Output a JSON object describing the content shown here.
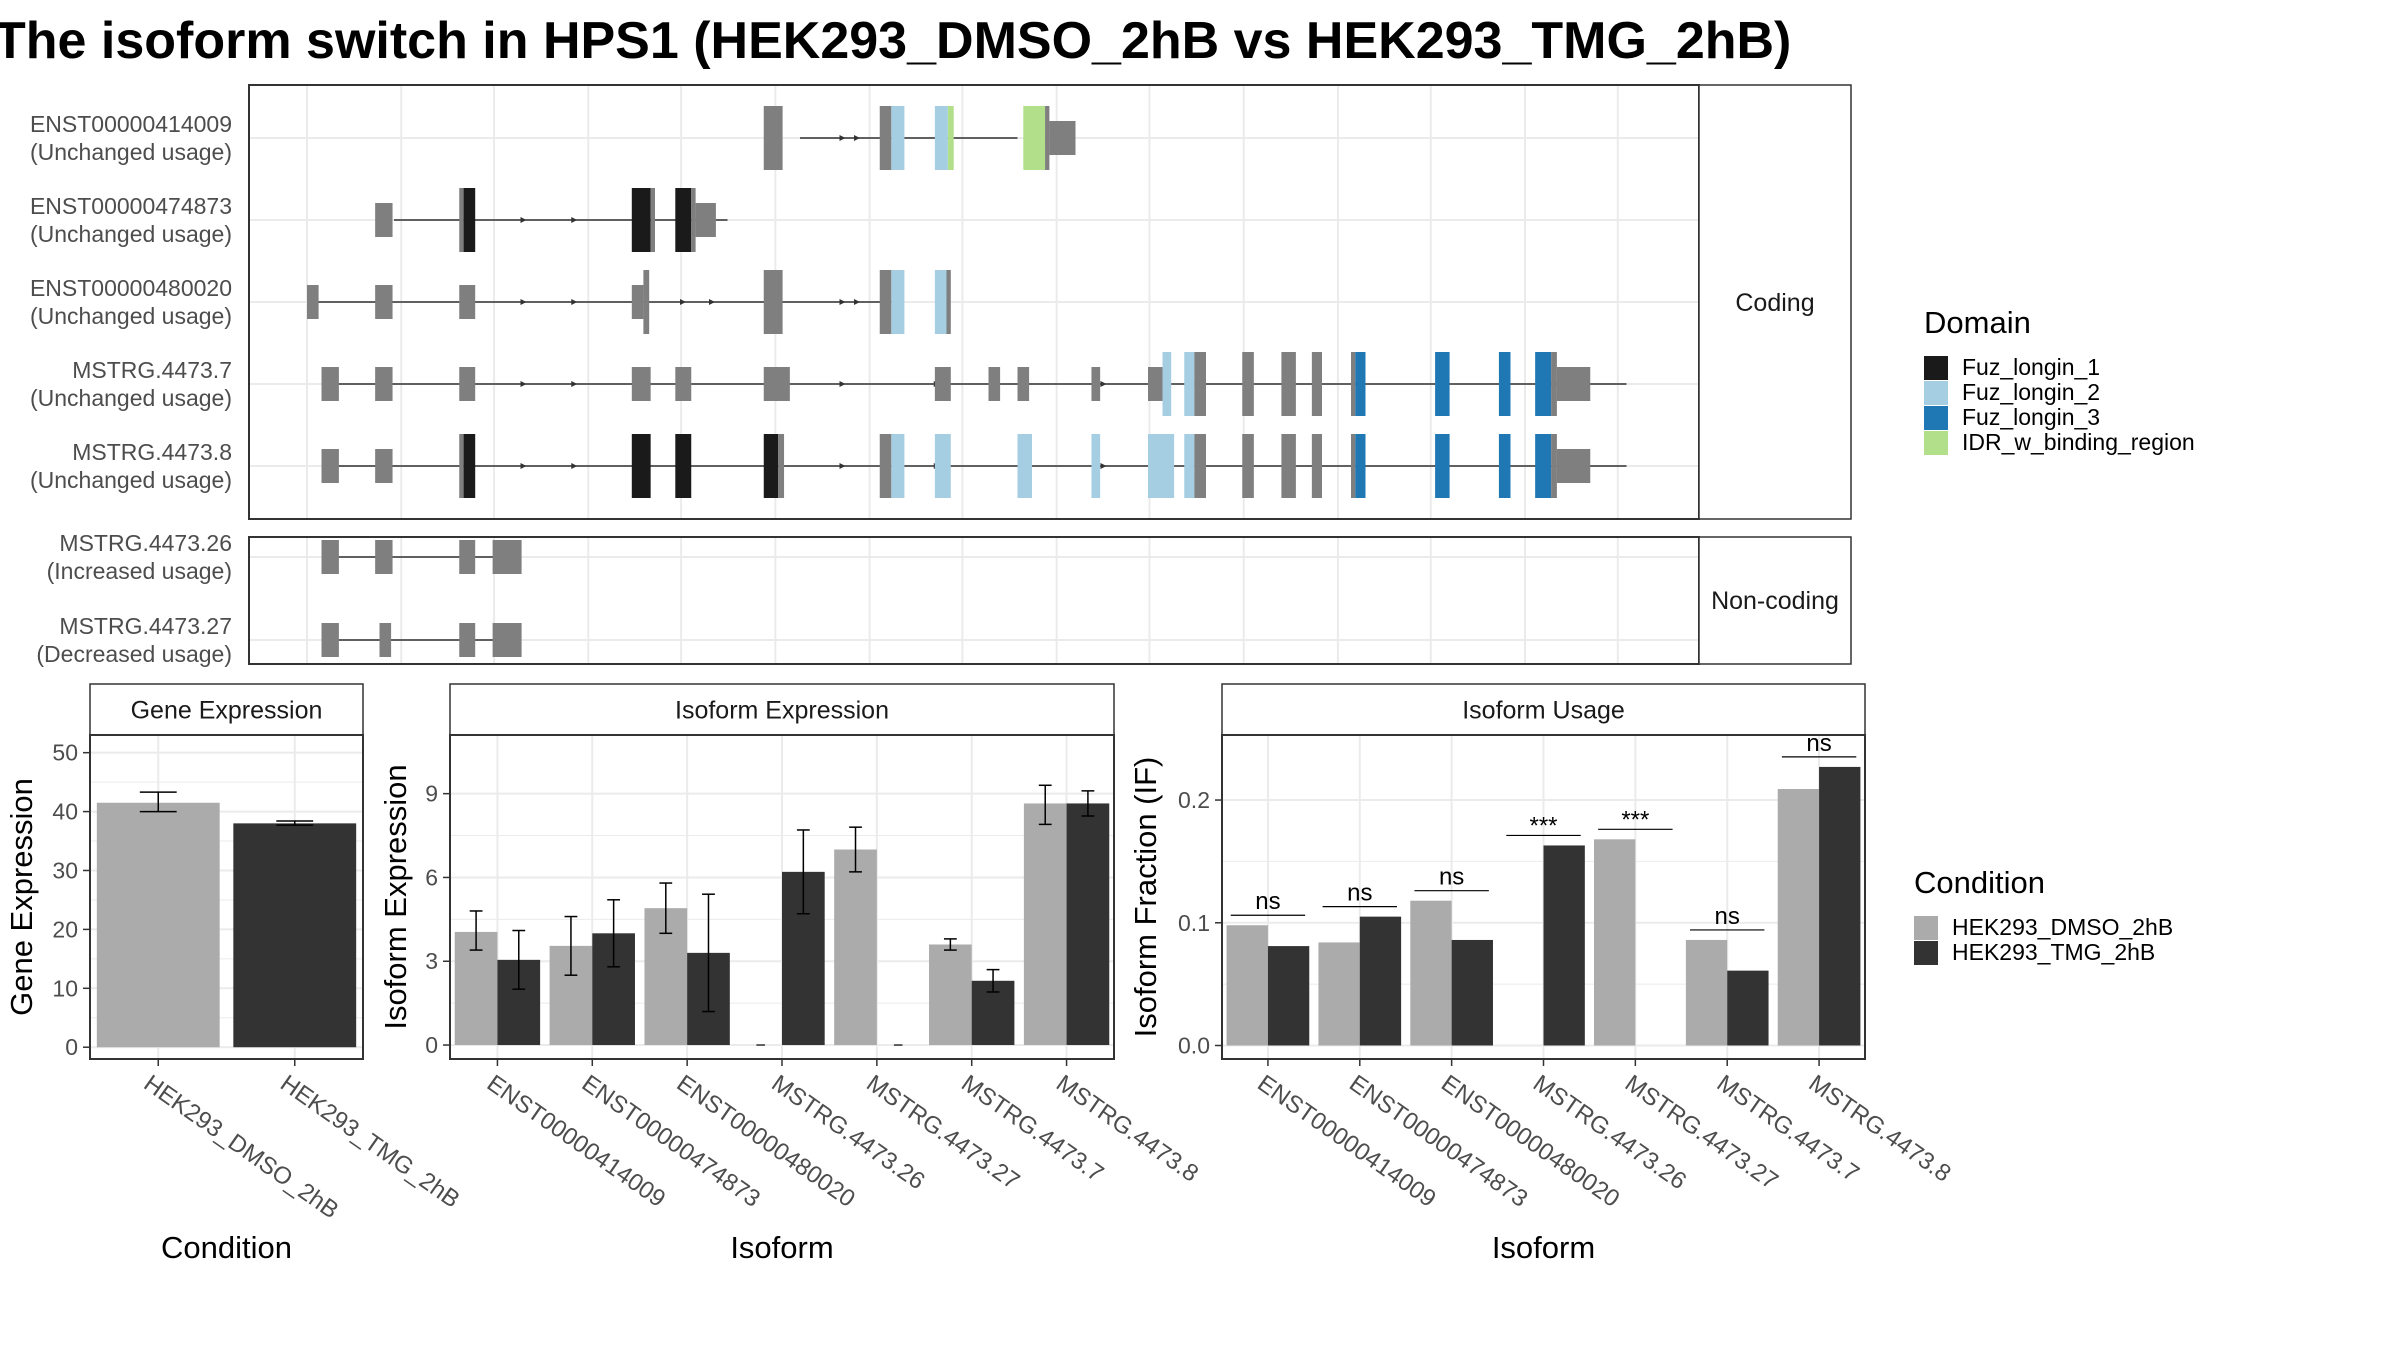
{
  "title": "The isoform switch in HPS1 (HEK293_DMSO_2hB vs HEK293_TMG_2hB)",
  "colors": {
    "dmso": "#ABABAB",
    "tmg": "#333333",
    "exon": "#7F7F7F",
    "fuz1": "#1A1A1A",
    "fuz2": "#A6CEE3",
    "fuz3": "#1F78B4",
    "idr": "#B2DF8A",
    "grid": "#EBEBEB",
    "panel_border": "#333333",
    "strip_fill": "#FFFFFF"
  },
  "structure": {
    "strips": {
      "coding": "Coding",
      "noncoding": "Non-coding"
    },
    "isoforms": [
      {
        "id": "ENST00000414009",
        "usage": "(Unchanged usage)",
        "group": "coding",
        "introns": [
          [
            0.38,
            0.53
          ]
        ],
        "exons": [
          {
            "s": 0.355,
            "e": 0.368,
            "h": "t",
            "c": "exon"
          },
          {
            "s": 0.435,
            "e": 0.443,
            "h": "t",
            "c": "exon"
          },
          {
            "s": 0.443,
            "e": 0.452,
            "h": "t",
            "c": "fuz2"
          },
          {
            "s": 0.473,
            "e": 0.482,
            "h": "t",
            "c": "fuz2"
          },
          {
            "s": 0.482,
            "e": 0.486,
            "h": "t",
            "c": "idr"
          },
          {
            "s": 0.534,
            "e": 0.549,
            "h": "t",
            "c": "idr"
          },
          {
            "s": 0.549,
            "e": 0.552,
            "h": "t",
            "c": "exon"
          },
          {
            "s": 0.552,
            "e": 0.57,
            "h": "s",
            "c": "exon"
          }
        ],
        "arrows": [
          0.41,
          0.42
        ]
      },
      {
        "id": "ENST00000474873",
        "usage": "(Unchanged usage)",
        "group": "coding",
        "introns": [
          [
            0.1,
            0.33
          ]
        ],
        "exons": [
          {
            "s": 0.087,
            "e": 0.099,
            "h": "s",
            "c": "exon"
          },
          {
            "s": 0.145,
            "e": 0.148,
            "h": "t",
            "c": "exon"
          },
          {
            "s": 0.148,
            "e": 0.156,
            "h": "t",
            "c": "fuz1"
          },
          {
            "s": 0.264,
            "e": 0.277,
            "h": "t",
            "c": "fuz1"
          },
          {
            "s": 0.277,
            "e": 0.28,
            "h": "t",
            "c": "exon"
          },
          {
            "s": 0.294,
            "e": 0.305,
            "h": "t",
            "c": "fuz1"
          },
          {
            "s": 0.305,
            "e": 0.308,
            "h": "t",
            "c": "exon"
          },
          {
            "s": 0.308,
            "e": 0.322,
            "h": "s",
            "c": "exon"
          }
        ],
        "arrows": [
          0.19,
          0.225
        ]
      },
      {
        "id": "ENST00000480020",
        "usage": "(Unchanged usage)",
        "group": "coding",
        "introns": [
          [
            0.04,
            0.45
          ]
        ],
        "exons": [
          {
            "s": 0.04,
            "e": 0.048,
            "h": "s",
            "c": "exon"
          },
          {
            "s": 0.087,
            "e": 0.099,
            "h": "s",
            "c": "exon"
          },
          {
            "s": 0.145,
            "e": 0.156,
            "h": "s",
            "c": "exon"
          },
          {
            "s": 0.264,
            "e": 0.272,
            "h": "s",
            "c": "exon"
          },
          {
            "s": 0.272,
            "e": 0.276,
            "h": "t",
            "c": "exon"
          },
          {
            "s": 0.355,
            "e": 0.368,
            "h": "t",
            "c": "exon"
          },
          {
            "s": 0.435,
            "e": 0.443,
            "h": "t",
            "c": "exon"
          },
          {
            "s": 0.443,
            "e": 0.452,
            "h": "t",
            "c": "fuz2"
          },
          {
            "s": 0.473,
            "e": 0.481,
            "h": "t",
            "c": "fuz2"
          },
          {
            "s": 0.481,
            "e": 0.484,
            "h": "t",
            "c": "exon"
          }
        ],
        "arrows": [
          0.19,
          0.225,
          0.3,
          0.32,
          0.41,
          0.42
        ]
      },
      {
        "id": "MSTRG.4473.7",
        "usage": "(Unchanged usage)",
        "group": "coding",
        "introns": [
          [
            0.05,
            0.95
          ]
        ],
        "exons": [
          {
            "s": 0.05,
            "e": 0.062,
            "h": "s",
            "c": "exon"
          },
          {
            "s": 0.087,
            "e": 0.099,
            "h": "s",
            "c": "exon"
          },
          {
            "s": 0.145,
            "e": 0.156,
            "h": "s",
            "c": "exon"
          },
          {
            "s": 0.264,
            "e": 0.277,
            "h": "s",
            "c": "exon"
          },
          {
            "s": 0.294,
            "e": 0.305,
            "h": "s",
            "c": "exon"
          },
          {
            "s": 0.355,
            "e": 0.373,
            "h": "s",
            "c": "exon"
          },
          {
            "s": 0.473,
            "e": 0.484,
            "h": "s",
            "c": "exon"
          },
          {
            "s": 0.51,
            "e": 0.518,
            "h": "s",
            "c": "exon"
          },
          {
            "s": 0.53,
            "e": 0.538,
            "h": "s",
            "c": "exon"
          },
          {
            "s": 0.581,
            "e": 0.587,
            "h": "s",
            "c": "exon"
          },
          {
            "s": 0.62,
            "e": 0.63,
            "h": "s",
            "c": "exon"
          },
          {
            "s": 0.63,
            "e": 0.636,
            "h": "t",
            "c": "fuz2"
          },
          {
            "s": 0.645,
            "e": 0.652,
            "h": "t",
            "c": "fuz2"
          },
          {
            "s": 0.652,
            "e": 0.66,
            "h": "t",
            "c": "exon"
          },
          {
            "s": 0.685,
            "e": 0.693,
            "h": "t",
            "c": "exon"
          },
          {
            "s": 0.712,
            "e": 0.722,
            "h": "t",
            "c": "exon"
          },
          {
            "s": 0.733,
            "e": 0.74,
            "h": "t",
            "c": "exon"
          },
          {
            "s": 0.76,
            "e": 0.763,
            "h": "t",
            "c": "exon"
          },
          {
            "s": 0.763,
            "e": 0.77,
            "h": "t",
            "c": "fuz3"
          },
          {
            "s": 0.818,
            "e": 0.828,
            "h": "t",
            "c": "fuz3"
          },
          {
            "s": 0.862,
            "e": 0.87,
            "h": "t",
            "c": "fuz3"
          },
          {
            "s": 0.887,
            "e": 0.898,
            "h": "t",
            "c": "fuz3"
          },
          {
            "s": 0.898,
            "e": 0.902,
            "h": "t",
            "c": "exon"
          },
          {
            "s": 0.902,
            "e": 0.925,
            "h": "s",
            "c": "exon"
          }
        ],
        "arrows": [
          0.19,
          0.225,
          0.41,
          0.475,
          0.59
        ]
      },
      {
        "id": "MSTRG.4473.8",
        "usage": "(Unchanged usage)",
        "group": "coding",
        "introns": [
          [
            0.05,
            0.95
          ]
        ],
        "exons": [
          {
            "s": 0.05,
            "e": 0.062,
            "h": "s",
            "c": "exon"
          },
          {
            "s": 0.087,
            "e": 0.099,
            "h": "s",
            "c": "exon"
          },
          {
            "s": 0.145,
            "e": 0.148,
            "h": "t",
            "c": "exon"
          },
          {
            "s": 0.148,
            "e": 0.156,
            "h": "t",
            "c": "fuz1"
          },
          {
            "s": 0.264,
            "e": 0.277,
            "h": "t",
            "c": "fuz1"
          },
          {
            "s": 0.294,
            "e": 0.305,
            "h": "t",
            "c": "fuz1"
          },
          {
            "s": 0.355,
            "e": 0.365,
            "h": "t",
            "c": "fuz1"
          },
          {
            "s": 0.365,
            "e": 0.369,
            "h": "t",
            "c": "exon"
          },
          {
            "s": 0.435,
            "e": 0.443,
            "h": "t",
            "c": "exon"
          },
          {
            "s": 0.443,
            "e": 0.452,
            "h": "t",
            "c": "fuz2"
          },
          {
            "s": 0.473,
            "e": 0.484,
            "h": "t",
            "c": "fuz2"
          },
          {
            "s": 0.53,
            "e": 0.54,
            "h": "t",
            "c": "fuz2"
          },
          {
            "s": 0.581,
            "e": 0.587,
            "h": "t",
            "c": "fuz2"
          },
          {
            "s": 0.62,
            "e": 0.638,
            "h": "t",
            "c": "fuz2"
          },
          {
            "s": 0.645,
            "e": 0.652,
            "h": "t",
            "c": "fuz2"
          },
          {
            "s": 0.652,
            "e": 0.66,
            "h": "t",
            "c": "exon"
          },
          {
            "s": 0.685,
            "e": 0.693,
            "h": "t",
            "c": "exon"
          },
          {
            "s": 0.712,
            "e": 0.722,
            "h": "t",
            "c": "exon"
          },
          {
            "s": 0.733,
            "e": 0.74,
            "h": "t",
            "c": "exon"
          },
          {
            "s": 0.76,
            "e": 0.763,
            "h": "t",
            "c": "exon"
          },
          {
            "s": 0.763,
            "e": 0.77,
            "h": "t",
            "c": "fuz3"
          },
          {
            "s": 0.818,
            "e": 0.828,
            "h": "t",
            "c": "fuz3"
          },
          {
            "s": 0.862,
            "e": 0.87,
            "h": "t",
            "c": "fuz3"
          },
          {
            "s": 0.887,
            "e": 0.898,
            "h": "t",
            "c": "fuz3"
          },
          {
            "s": 0.898,
            "e": 0.902,
            "h": "t",
            "c": "exon"
          },
          {
            "s": 0.902,
            "e": 0.925,
            "h": "s",
            "c": "exon"
          }
        ],
        "arrows": [
          0.19,
          0.225,
          0.41,
          0.475,
          0.59
        ]
      },
      {
        "id": "MSTRG.4473.26",
        "usage": "(Increased usage)",
        "group": "noncoding",
        "introns": [
          [
            0.05,
            0.17
          ]
        ],
        "exons": [
          {
            "s": 0.05,
            "e": 0.062,
            "h": "s",
            "c": "exon"
          },
          {
            "s": 0.087,
            "e": 0.099,
            "h": "s",
            "c": "exon"
          },
          {
            "s": 0.145,
            "e": 0.156,
            "h": "s",
            "c": "exon"
          },
          {
            "s": 0.168,
            "e": 0.188,
            "h": "s",
            "c": "exon"
          }
        ],
        "arrows": []
      },
      {
        "id": "MSTRG.4473.27",
        "usage": "(Decreased usage)",
        "group": "noncoding",
        "introns": [
          [
            0.05,
            0.17
          ]
        ],
        "exons": [
          {
            "s": 0.05,
            "e": 0.062,
            "h": "s",
            "c": "exon"
          },
          {
            "s": 0.09,
            "e": 0.098,
            "h": "s",
            "c": "exon"
          },
          {
            "s": 0.145,
            "e": 0.156,
            "h": "s",
            "c": "exon"
          },
          {
            "s": 0.168,
            "e": 0.188,
            "h": "s",
            "c": "exon"
          }
        ],
        "arrows": []
      }
    ]
  },
  "domain_legend": {
    "title": "Domain",
    "items": [
      {
        "label": "Fuz_longin_1",
        "color": "#1A1A1A"
      },
      {
        "label": "Fuz_longin_2",
        "color": "#A6CEE3"
      },
      {
        "label": "Fuz_longin_3",
        "color": "#1F78B4"
      },
      {
        "label": "IDR_w_binding_region",
        "color": "#B2DF8A"
      }
    ]
  },
  "condition_legend": {
    "title": "Condition",
    "items": [
      {
        "label": "HEK293_DMSO_2hB",
        "color": "#ABABAB"
      },
      {
        "label": "HEK293_TMG_2hB",
        "color": "#333333"
      }
    ]
  },
  "chart_data": [
    {
      "type": "bar",
      "title": "Gene Expression",
      "xlabel": "Condition",
      "ylabel": "Gene Expression",
      "categories": [
        "HEK293_DMSO_2hB",
        "HEK293_TMG_2hB"
      ],
      "values": [
        41.5,
        38.0
      ],
      "error": [
        [
          40.0,
          43.3
        ],
        [
          37.7,
          38.4
        ]
      ],
      "ylim": [
        -2,
        53
      ],
      "yticks": [
        0,
        10,
        20,
        30,
        40,
        50
      ]
    },
    {
      "type": "bar",
      "title": "Isoform Expression",
      "xlabel": "Isoform",
      "ylabel": "Isoform Expression",
      "categories": [
        "ENST00000414009",
        "ENST00000474873",
        "ENST00000480020",
        "MSTRG.4473.26",
        "MSTRG.4473.27",
        "MSTRG.4473.7",
        "MSTRG.4473.8"
      ],
      "series": [
        {
          "name": "HEK293_DMSO_2hB",
          "values": [
            4.05,
            3.55,
            4.9,
            0.0,
            7.0,
            3.6,
            8.65
          ],
          "error": [
            [
              3.4,
              4.8
            ],
            [
              2.5,
              4.6
            ],
            [
              4.0,
              5.8
            ],
            [
              0,
              0
            ],
            [
              6.2,
              7.8
            ],
            [
              3.4,
              3.8
            ],
            [
              7.9,
              9.3
            ]
          ]
        },
        {
          "name": "HEK293_TMG_2hB",
          "values": [
            3.05,
            4.0,
            3.3,
            6.2,
            0.0,
            2.3,
            8.65
          ],
          "error": [
            [
              2.0,
              4.1
            ],
            [
              2.8,
              5.2
            ],
            [
              1.2,
              5.4
            ],
            [
              4.7,
              7.7
            ],
            [
              0,
              0
            ],
            [
              1.9,
              2.7
            ],
            [
              8.2,
              9.1
            ]
          ]
        }
      ],
      "ylim": [
        -0.5,
        11.1
      ],
      "yticks": [
        0,
        3,
        6,
        9
      ]
    },
    {
      "type": "bar",
      "title": "Isoform Usage",
      "xlabel": "Isoform",
      "ylabel": "Isoform Fraction (IF)",
      "categories": [
        "ENST00000414009",
        "ENST00000474873",
        "ENST00000480020",
        "MSTRG.4473.26",
        "MSTRG.4473.27",
        "MSTRG.4473.7",
        "MSTRG.4473.8"
      ],
      "series": [
        {
          "name": "HEK293_DMSO_2hB",
          "values": [
            0.098,
            0.084,
            0.118,
            0.0,
            0.168,
            0.086,
            0.209
          ]
        },
        {
          "name": "HEK293_TMG_2hB",
          "values": [
            0.081,
            0.105,
            0.086,
            0.163,
            0.0,
            0.061,
            0.227
          ]
        }
      ],
      "significance": [
        "ns",
        "ns",
        "ns",
        "***",
        "***",
        "ns",
        "ns"
      ],
      "ylim": [
        -0.011,
        0.253
      ],
      "yticks": [
        0.0,
        0.1,
        0.2
      ],
      "yticklabels": [
        "0.0",
        "0.1",
        "0.2"
      ]
    }
  ]
}
